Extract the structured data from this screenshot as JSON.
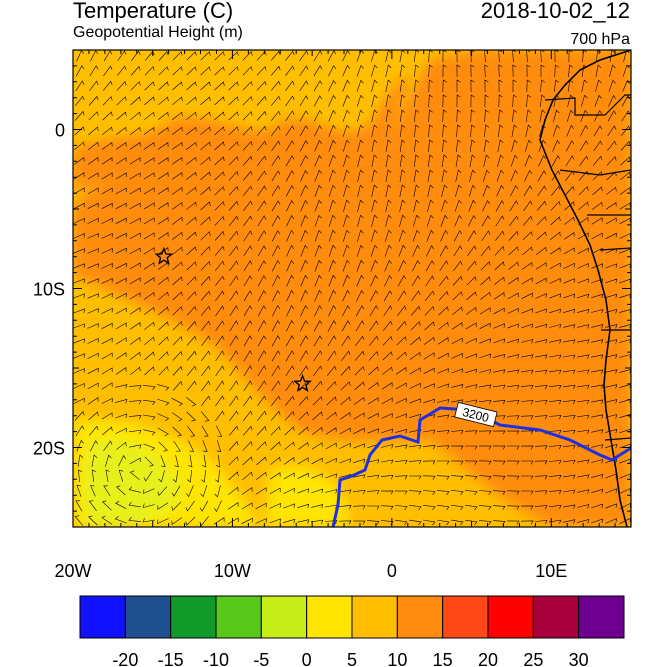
{
  "header": {
    "title_left": "Temperature (C)",
    "subtitle_left": "Geopotential Height (m)",
    "datetime": "2018-10-02_12",
    "level": "700 hPa"
  },
  "map": {
    "lon_range": [
      -20,
      15
    ],
    "lat_range": [
      -25,
      5
    ],
    "lon_ticks": [
      {
        "value": -20,
        "label": "20W"
      },
      {
        "value": -10,
        "label": "10W"
      },
      {
        "value": 0,
        "label": "0"
      },
      {
        "value": 10,
        "label": "10E"
      }
    ],
    "lat_ticks": [
      {
        "value": 0,
        "label": "0"
      },
      {
        "value": -10,
        "label": "10S"
      },
      {
        "value": -20,
        "label": "20S"
      }
    ],
    "contour_label": "3200",
    "contour_color": "#1f2fe6",
    "markers": [
      {
        "lon": -14.3,
        "lat": -8.0,
        "symbol": "star"
      },
      {
        "lon": -5.6,
        "lat": -16.0,
        "symbol": "star"
      }
    ]
  },
  "colorbar": {
    "colors": [
      "#1111ff",
      "#1f4f8f",
      "#0f9a2a",
      "#58c81a",
      "#c8ee1a",
      "#ffe500",
      "#ffbe00",
      "#ff8c10",
      "#ff4818",
      "#ff0000",
      "#a8003c",
      "#6e0090"
    ],
    "labels": [
      "-20",
      "-15",
      "-10",
      "-5",
      "0",
      "5",
      "10",
      "15",
      "20",
      "25",
      "30"
    ]
  }
}
